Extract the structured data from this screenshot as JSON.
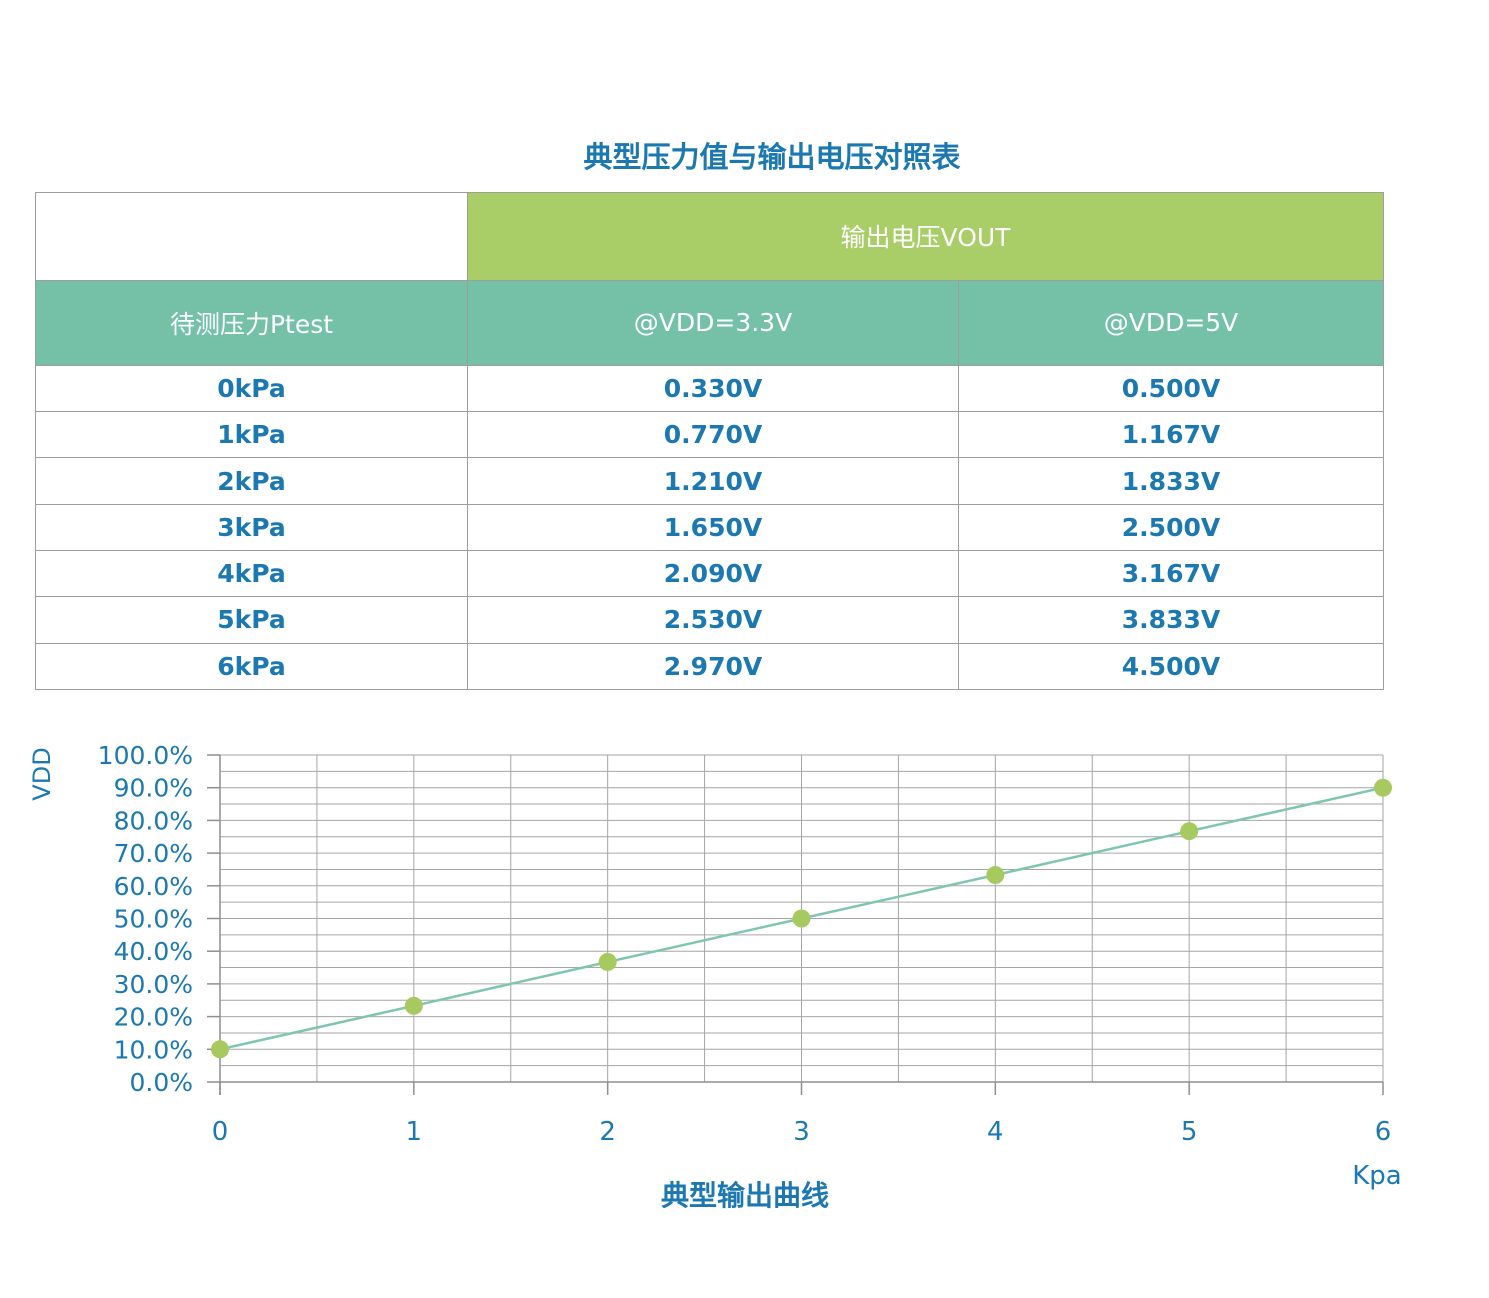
{
  "title": "典型压力值与输出电压对照表",
  "table": {
    "corner": "",
    "vout_header": "输出电压VOUT",
    "col_headers": [
      "待测压力Ptest",
      "@VDD=3.3V",
      "@VDD=5V"
    ],
    "rows": [
      [
        "0kPa",
        "0.330V",
        "0.500V"
      ],
      [
        "1kPa",
        "0.770V",
        "1.167V"
      ],
      [
        "2kPa",
        "1.210V",
        "1.833V"
      ],
      [
        "3kPa",
        "1.650V",
        "2.500V"
      ],
      [
        "4kPa",
        "2.090V",
        "3.167V"
      ],
      [
        "5kPa",
        "2.530V",
        "3.833V"
      ],
      [
        "6kPa",
        "2.970V",
        "4.500V"
      ]
    ]
  },
  "chart_data": {
    "type": "line",
    "x": [
      0,
      1,
      2,
      3,
      4,
      5,
      6
    ],
    "series": [
      {
        "name": "典型输出曲线",
        "values": [
          10.0,
          23.3,
          36.7,
          50.0,
          63.3,
          76.7,
          90.0
        ]
      }
    ],
    "title": "典型输出曲线",
    "xlabel": "Kpa",
    "ylabel": "VDD",
    "xlim": [
      0,
      6
    ],
    "ylim": [
      0,
      100
    ],
    "xtick_step": 1,
    "ytick_step": 10,
    "x_minor_step": 0.5,
    "y_minor_step": 5,
    "ytick_suffix": "%",
    "ytick_decimals": 1,
    "grid": true,
    "legend_position": "none"
  },
  "colors": {
    "blue": "#1b78b0",
    "green": "#a9ce67",
    "teal": "#74c1a7",
    "border": "#9e9e9e",
    "grid": "#a6a6a6",
    "axis": "#8f8f8f",
    "line": "#7fc6af",
    "marker": "#a6ca60"
  }
}
